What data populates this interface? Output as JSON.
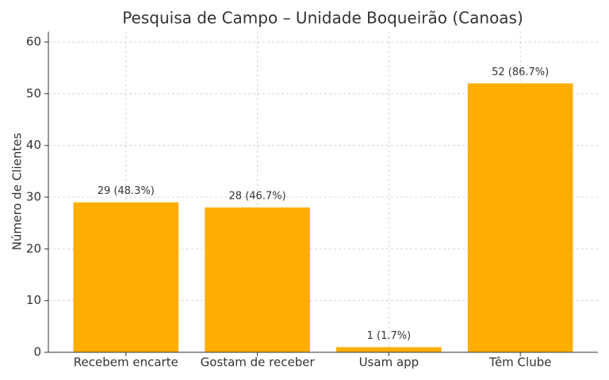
{
  "chart_data": {
    "type": "bar",
    "title": "Pesquisa de Campo – Unidade Boqueirão (Canoas)",
    "y_label": "Número de Clientes",
    "categories": [
      "Recebem encarte",
      "Gostam de receber",
      "Usam app",
      "Têm Clube"
    ],
    "values": [
      29,
      28,
      1,
      52
    ],
    "value_labels": [
      "29 (48.3%)",
      "28 (46.7%)",
      "1 (1.7%)",
      "52 (86.7%)"
    ],
    "color": "#ffad00",
    "ylim": [
      0,
      62
    ],
    "yticks": [
      0,
      10,
      20,
      30,
      40,
      50,
      60
    ],
    "grid": true
  }
}
